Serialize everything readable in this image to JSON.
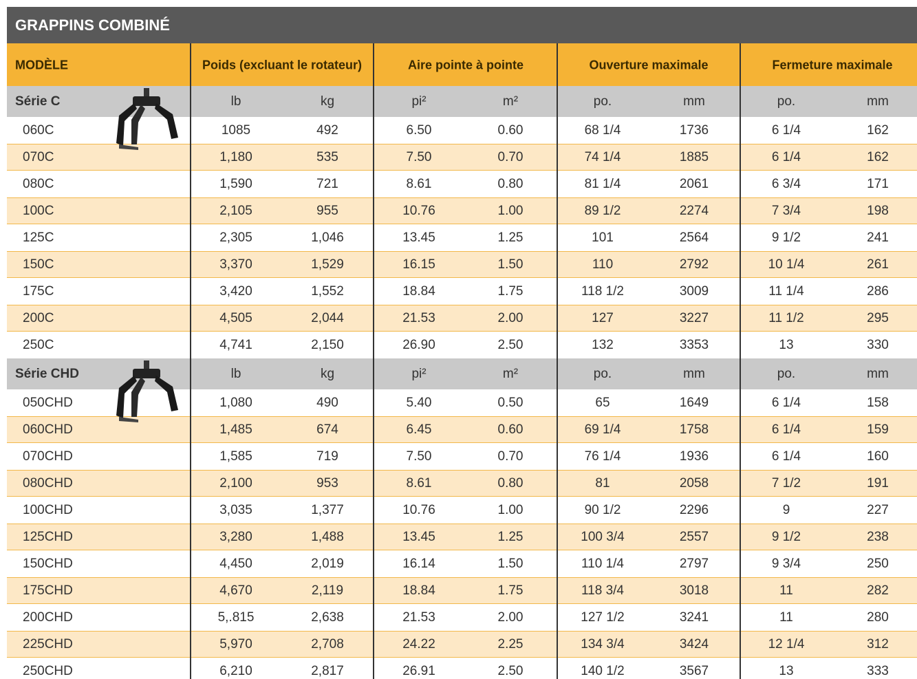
{
  "title": "GRAPPINS COMBINÉ",
  "header": {
    "model": "MODÈLE",
    "groups": [
      "Poids (excluant le rotateur)",
      "Aire pointe à pointe",
      "Ouverture maximale",
      "Fermeture maximale"
    ]
  },
  "series": [
    {
      "label": "Série C",
      "units": [
        "lb",
        "kg",
        "pi²",
        "m²",
        "po.",
        "mm",
        "po.",
        "mm"
      ],
      "rows": [
        [
          "060C",
          "1085",
          "492",
          "6.50",
          "0.60",
          "68 1/4",
          "1736",
          "6 1/4",
          "162"
        ],
        [
          "070C",
          "1,180",
          "535",
          "7.50",
          "0.70",
          "74 1/4",
          "1885",
          "6 1/4",
          "162"
        ],
        [
          "080C",
          "1,590",
          "721",
          "8.61",
          "0.80",
          "81 1/4",
          "2061",
          "6 3/4",
          "171"
        ],
        [
          "100C",
          "2,105",
          "955",
          "10.76",
          "1.00",
          "89 1/2",
          "2274",
          "7 3/4",
          "198"
        ],
        [
          "125C",
          "2,305",
          "1,046",
          "13.45",
          "1.25",
          "101",
          "2564",
          "9 1/2",
          "241"
        ],
        [
          "150C",
          "3,370",
          "1,529",
          "16.15",
          "1.50",
          "110",
          "2792",
          "10 1/4",
          "261"
        ],
        [
          "175C",
          "3,420",
          "1,552",
          "18.84",
          "1.75",
          "118 1/2",
          "3009",
          "11 1/4",
          "286"
        ],
        [
          "200C",
          "4,505",
          "2,044",
          "21.53",
          "2.00",
          "127",
          "3227",
          "11 1/2",
          "295"
        ],
        [
          "250C",
          "4,741",
          "2,150",
          "26.90",
          "2.50",
          "132",
          "3353",
          "13",
          "330"
        ]
      ]
    },
    {
      "label": "Série CHD",
      "units": [
        "lb",
        "kg",
        "pi²",
        "m²",
        "po.",
        "mm",
        "po.",
        "mm"
      ],
      "rows": [
        [
          "050CHD",
          "1,080",
          "490",
          "5.40",
          "0.50",
          "65",
          "1649",
          "6 1/4",
          "158"
        ],
        [
          "060CHD",
          "1,485",
          "674",
          "6.45",
          "0.60",
          "69 1/4",
          "1758",
          "6 1/4",
          "159"
        ],
        [
          "070CHD",
          "1,585",
          "719",
          "7.50",
          "0.70",
          "76 1/4",
          "1936",
          "6 1/4",
          "160"
        ],
        [
          "080CHD",
          "2,100",
          "953",
          "8.61",
          "0.80",
          "81",
          "2058",
          "7 1/2",
          "191"
        ],
        [
          "100CHD",
          "3,035",
          "1,377",
          "10.76",
          "1.00",
          "90 1/2",
          "2296",
          "9",
          "227"
        ],
        [
          "125CHD",
          "3,280",
          "1,488",
          "13.45",
          "1.25",
          "100 3/4",
          "2557",
          "9 1/2",
          "238"
        ],
        [
          "150CHD",
          "4,450",
          "2,019",
          "16.14",
          "1.50",
          "110 1/4",
          "2797",
          "9 3/4",
          "250"
        ],
        [
          "175CHD",
          "4,670",
          "2,119",
          "18.84",
          "1.75",
          "118 3/4",
          "3018",
          "11",
          "282"
        ],
        [
          "200CHD",
          "5,.815",
          "2,638",
          "21.53",
          "2.00",
          "127 1/2",
          "3241",
          "11",
          "280"
        ],
        [
          "225CHD",
          "5,970",
          "2,708",
          "24.22",
          "2.25",
          "134 3/4",
          "3424",
          "12 1/4",
          "312"
        ],
        [
          "250CHD",
          "6,210",
          "2,817",
          "26.91",
          "2.50",
          "140 1/2",
          "3567",
          "13",
          "333"
        ]
      ]
    }
  ]
}
